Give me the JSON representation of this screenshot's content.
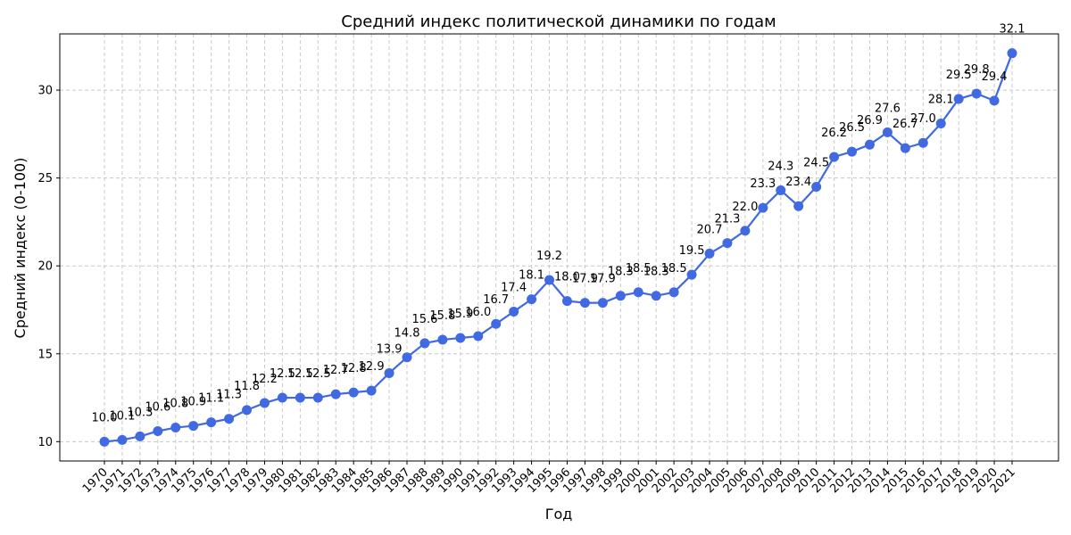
{
  "chart_data": {
    "type": "line",
    "title": "Средний индекс политической динамики по годам",
    "xlabel": "Год",
    "ylabel": "Средний индекс (0-100)",
    "ylim": [
      8.9,
      33.2
    ],
    "yticks": [
      10,
      15,
      20,
      25,
      30
    ],
    "grid": true,
    "line_color": "#4169e1",
    "x": [
      1970,
      1971,
      1972,
      1973,
      1974,
      1975,
      1976,
      1977,
      1978,
      1979,
      1980,
      1981,
      1982,
      1983,
      1984,
      1985,
      1986,
      1987,
      1988,
      1989,
      1990,
      1991,
      1992,
      1993,
      1994,
      1995,
      1996,
      1997,
      1998,
      1999,
      2000,
      2001,
      2002,
      2003,
      2004,
      2005,
      2006,
      2007,
      2008,
      2009,
      2010,
      2011,
      2012,
      2013,
      2014,
      2015,
      2016,
      2017,
      2018,
      2019,
      2020,
      2021
    ],
    "y": [
      10.0,
      10.1,
      10.3,
      10.6,
      10.8,
      10.9,
      11.1,
      11.3,
      11.8,
      12.2,
      12.5,
      12.5,
      12.5,
      12.7,
      12.8,
      12.9,
      13.9,
      14.8,
      15.6,
      15.8,
      15.9,
      16.0,
      16.7,
      17.4,
      18.1,
      19.2,
      18.0,
      17.9,
      17.9,
      18.3,
      18.5,
      18.3,
      18.5,
      19.5,
      20.7,
      21.3,
      22.0,
      23.3,
      24.3,
      23.4,
      24.5,
      26.2,
      26.5,
      26.9,
      27.6,
      26.7,
      27.0,
      28.1,
      29.5,
      29.8,
      29.4,
      32.1
    ]
  }
}
